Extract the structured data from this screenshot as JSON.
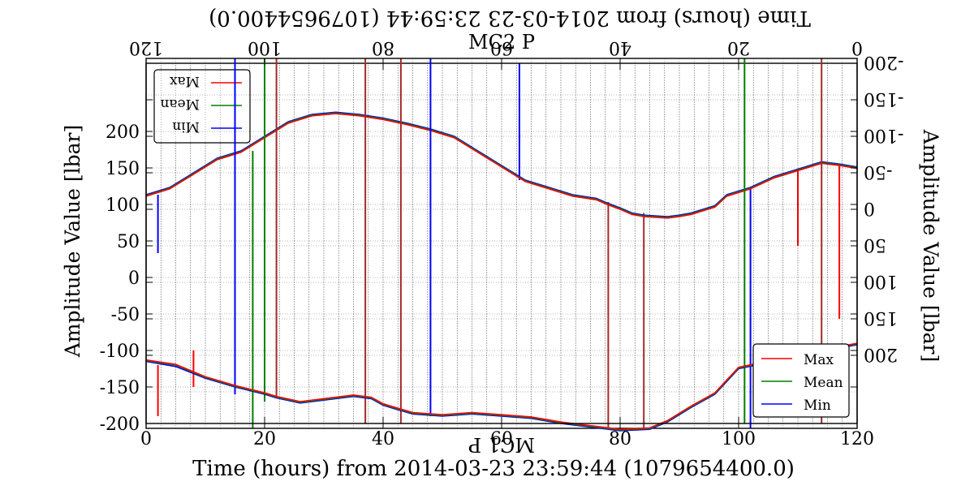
{
  "chart_data": [
    {
      "type": "line",
      "panel": "normal",
      "title": "MC2 P",
      "xlabel": "Time (hours) from 2014-03-23 23:59:44 (1079654400.0)",
      "ylabel": "Amplitude Value [lbar]",
      "xlim": [
        0,
        120
      ],
      "ylim": [
        -200,
        300
      ],
      "xticks": [
        0,
        20,
        40,
        60,
        80,
        100,
        120
      ],
      "yticks": [
        -200,
        -150,
        -100,
        -50,
        0,
        50,
        100,
        150,
        200
      ],
      "grid": true,
      "legend_position": "lower-right",
      "series": [
        {
          "name": "Min",
          "color": "#0000ff",
          "x": [
            0,
            5,
            10,
            15,
            18,
            20,
            22,
            26,
            30,
            35,
            38,
            40,
            42,
            45,
            50,
            55,
            60,
            65,
            70,
            75,
            80,
            85,
            88,
            92,
            96,
            100,
            103,
            106,
            110,
            115,
            120
          ],
          "y": [
            -115,
            -122,
            -138,
            -150,
            -156,
            -160,
            -165,
            -172,
            -168,
            -163,
            -166,
            -175,
            -180,
            -187,
            -190,
            -187,
            -190,
            -193,
            -200,
            -205,
            -210,
            -208,
            -198,
            -178,
            -160,
            -125,
            -120,
            -118,
            -108,
            -100,
            -92
          ]
        },
        {
          "name": "Mean",
          "color": "#008000",
          "x": [
            0,
            5,
            10,
            15,
            18,
            20,
            22,
            26,
            30,
            35,
            38,
            40,
            42,
            45,
            50,
            55,
            60,
            65,
            70,
            75,
            80,
            85,
            88,
            92,
            96,
            100,
            103,
            106,
            110,
            115,
            120
          ],
          "y": [
            -114,
            -120,
            -137,
            -149,
            -155,
            -159,
            -164,
            -171,
            -167,
            -162,
            -165,
            -174,
            -179,
            -186,
            -189,
            -186,
            -189,
            -192,
            -199,
            -204,
            -209,
            -207,
            -197,
            -177,
            -159,
            -124,
            -119,
            -117,
            -107,
            -99,
            -91
          ]
        },
        {
          "name": "Max",
          "color": "#ff0000",
          "x": [
            0,
            5,
            10,
            15,
            18,
            20,
            22,
            26,
            30,
            35,
            38,
            40,
            42,
            45,
            50,
            55,
            60,
            65,
            70,
            75,
            80,
            85,
            88,
            92,
            96,
            100,
            103,
            106,
            110,
            115,
            120
          ],
          "y": [
            -113,
            -119,
            -136,
            -148,
            -154,
            -158,
            -163,
            -170,
            -166,
            -161,
            -164,
            -173,
            -178,
            -185,
            -188,
            -185,
            -188,
            -191,
            -198,
            -203,
            -208,
            -206,
            -196,
            -176,
            -158,
            -123,
            -118,
            -116,
            -106,
            -98,
            -90
          ]
        }
      ],
      "spikes": [
        {
          "x": 2,
          "y0": -190,
          "y1": -120,
          "color": "#ff0000"
        },
        {
          "x": 8,
          "y0": -150,
          "y1": -100,
          "color": "#ff0000"
        },
        {
          "x": 15,
          "y0": -160,
          "y1": 300,
          "color": "#0000ff"
        },
        {
          "x": 20,
          "y0": -170,
          "y1": 300,
          "color": "#008000"
        },
        {
          "x": 22,
          "y0": -165,
          "y1": 300,
          "color": "#a52a2a"
        },
        {
          "x": 37,
          "y0": -200,
          "y1": 300,
          "color": "#a52a2a"
        },
        {
          "x": 43,
          "y0": -200,
          "y1": 300,
          "color": "#a52a2a"
        },
        {
          "x": 48,
          "y0": -190,
          "y1": 300,
          "color": "#0000ff"
        },
        {
          "x": 101,
          "y0": -200,
          "y1": 300,
          "color": "#008000"
        },
        {
          "x": 114,
          "y0": -200,
          "y1": 300,
          "color": "#a52a2a"
        }
      ]
    },
    {
      "type": "line",
      "panel": "mirrored",
      "title": "MC1 P",
      "xlabel": "Time (hours) from 2014-03-23 23:59:44 (1079654400.0)",
      "ylabel": "Amplitude Value [lbar]",
      "xlim": [
        0,
        120
      ],
      "ylim": [
        -200,
        300
      ],
      "xticks": [
        0,
        20,
        40,
        60,
        80,
        100,
        120
      ],
      "yticks": [
        -200,
        -150,
        -100,
        -50,
        0,
        50,
        100,
        150,
        200
      ],
      "grid": true,
      "legend_position": "upper-right",
      "series": [
        {
          "name": "Min",
          "color": "#0000ff",
          "x": [
            0,
            3,
            6,
            10,
            14,
            18,
            20,
            22,
            24,
            28,
            30,
            32,
            36,
            38,
            40,
            42,
            44,
            48,
            52,
            56,
            60,
            64,
            68,
            72,
            76,
            80,
            84,
            88,
            92,
            96,
            100,
            104,
            108,
            112,
            116,
            120
          ],
          "y": [
            -58,
            -62,
            -65,
            -55,
            -45,
            -30,
            -25,
            -20,
            -5,
            5,
            8,
            10,
            8,
            5,
            -2,
            -8,
            -15,
            -20,
            -30,
            -40,
            -60,
            -80,
            -100,
            -110,
            -118,
            -125,
            -130,
            -133,
            -130,
            -120,
            -100,
            -80,
            -70,
            -50,
            -30,
            -20
          ]
        },
        {
          "name": "Mean",
          "color": "#008000",
          "x": [
            0,
            3,
            6,
            10,
            14,
            18,
            20,
            22,
            24,
            28,
            30,
            32,
            36,
            38,
            40,
            42,
            44,
            48,
            52,
            56,
            60,
            64,
            68,
            72,
            76,
            80,
            84,
            88,
            92,
            96,
            100,
            104,
            108,
            112,
            116,
            120
          ],
          "y": [
            -57,
            -61,
            -64,
            -54,
            -44,
            -29,
            -24,
            -19,
            -4,
            6,
            9,
            11,
            9,
            6,
            -1,
            -7,
            -14,
            -19,
            -29,
            -39,
            -59,
            -79,
            -99,
            -109,
            -117,
            -124,
            -129,
            -132,
            -129,
            -119,
            -99,
            -79,
            -69,
            -49,
            -29,
            -19
          ]
        },
        {
          "name": "Max",
          "color": "#ff0000",
          "x": [
            0,
            3,
            6,
            10,
            14,
            18,
            20,
            22,
            24,
            28,
            30,
            32,
            36,
            38,
            40,
            42,
            44,
            48,
            52,
            56,
            60,
            64,
            68,
            72,
            76,
            80,
            84,
            88,
            92,
            96,
            100,
            104,
            108,
            112,
            116,
            120
          ],
          "y": [
            -56,
            -60,
            -63,
            -53,
            -43,
            -28,
            -23,
            -18,
            -3,
            7,
            10,
            12,
            10,
            7,
            0,
            -6,
            -13,
            -18,
            -28,
            -38,
            -58,
            -78,
            -98,
            -108,
            -116,
            -123,
            -128,
            -131,
            -128,
            -118,
            -98,
            -78,
            -68,
            -48,
            -28,
            -18
          ]
        }
      ],
      "spikes": [
        {
          "x": 3,
          "y0": -60,
          "y1": 150,
          "color": "#ff0000"
        },
        {
          "x": 10,
          "y0": -55,
          "y1": 50,
          "color": "#ff0000"
        },
        {
          "x": 18,
          "y0": -30,
          "y1": 300,
          "color": "#0000ff"
        },
        {
          "x": 36,
          "y0": 5,
          "y1": 300,
          "color": "#a52a2a"
        },
        {
          "x": 42,
          "y0": -10,
          "y1": 300,
          "color": "#a52a2a"
        },
        {
          "x": 57,
          "y0": -40,
          "y1": -200,
          "color": "#0000ff"
        },
        {
          "x": 102,
          "y0": -80,
          "y1": 300,
          "color": "#008000"
        },
        {
          "x": 118,
          "y0": -20,
          "y1": 60,
          "color": "#0000ff"
        }
      ]
    }
  ]
}
